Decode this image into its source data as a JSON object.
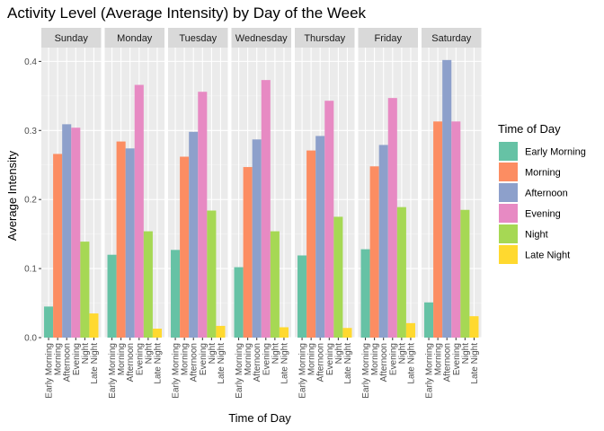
{
  "chart_data": {
    "type": "bar",
    "title": "Activity Level (Average Intensity) by Day of the Week",
    "xlabel": "Time of Day",
    "ylabel": "Average Intensity",
    "ylim": [
      0,
      0.42
    ],
    "yticks": [
      0.0,
      0.1,
      0.2,
      0.3,
      0.4
    ],
    "ytick_labels": [
      "0.0",
      "0.1",
      "0.2",
      "0.3",
      "0.4"
    ],
    "grid": true,
    "legend": {
      "title": "Time of Day",
      "placement": "right"
    },
    "categories": [
      "Early Morning",
      "Morning",
      "Afternoon",
      "Evening",
      "Night",
      "Late Night"
    ],
    "colors": [
      "#66C2A5",
      "#FC8D62",
      "#8DA0CB",
      "#E78AC3",
      "#A6D854",
      "#FFD92F"
    ],
    "facets": [
      {
        "name": "Sunday",
        "values": [
          0.045,
          0.266,
          0.309,
          0.304,
          0.139,
          0.035
        ]
      },
      {
        "name": "Monday",
        "values": [
          0.12,
          0.284,
          0.274,
          0.366,
          0.154,
          0.013
        ]
      },
      {
        "name": "Tuesday",
        "values": [
          0.127,
          0.262,
          0.298,
          0.356,
          0.184,
          0.017
        ]
      },
      {
        "name": "Wednesday",
        "values": [
          0.102,
          0.247,
          0.287,
          0.373,
          0.154,
          0.015
        ]
      },
      {
        "name": "Thursday",
        "values": [
          0.119,
          0.271,
          0.292,
          0.343,
          0.175,
          0.014
        ]
      },
      {
        "name": "Friday",
        "values": [
          0.128,
          0.248,
          0.279,
          0.347,
          0.189,
          0.021
        ]
      },
      {
        "name": "Saturday",
        "values": [
          0.051,
          0.313,
          0.402,
          0.313,
          0.185,
          0.031
        ]
      }
    ]
  }
}
